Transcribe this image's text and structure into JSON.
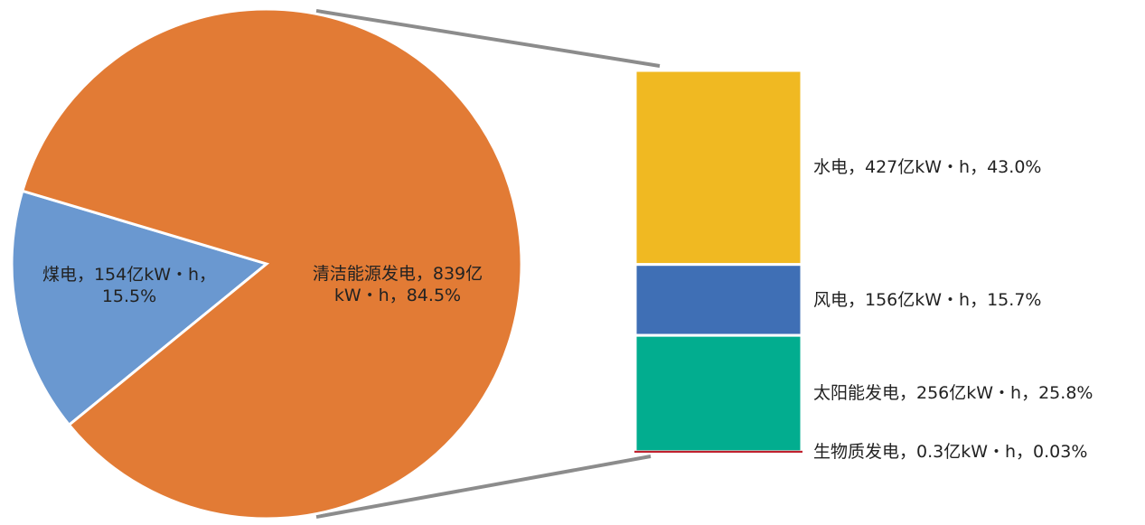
{
  "chart_data": [
    {
      "type": "pie",
      "categories": [
        "煤电",
        "清洁能源发电"
      ],
      "values": [
        154,
        839
      ],
      "value_labels": [
        "煤电，154亿kW・h，15.5%",
        "清洁能源发电，839亿kW・h，84.5%"
      ],
      "colors": [
        "#6a98d0",
        "#e27b35"
      ]
    },
    {
      "type": "stacked-bar",
      "categories": [
        "水电",
        "风电",
        "太阳能发电",
        "生物质发电"
      ],
      "values": [
        427,
        156,
        256,
        0.3
      ],
      "value_labels": [
        "水电，427亿kW・h，43.0%",
        "风电，156亿kW・h，15.7%",
        "太阳能发电，256亿kW・h，25.8%",
        "生物质发电，0.3亿kW・h，0.03%"
      ],
      "colors": [
        "#f0b922",
        "#3f6fb5",
        "#02ad8f",
        "#c0212e"
      ]
    }
  ]
}
